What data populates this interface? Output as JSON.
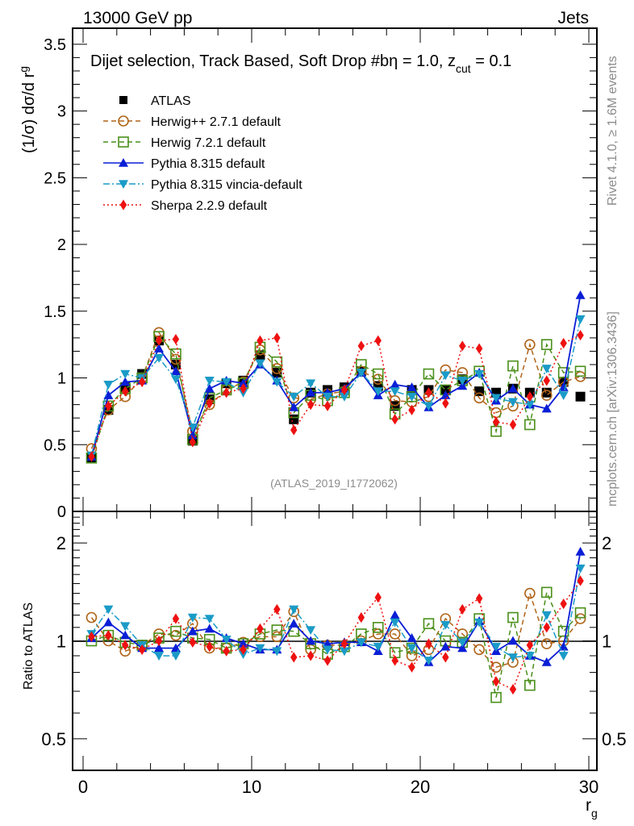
{
  "header": {
    "left": "13000 GeV pp",
    "right": "Jets"
  },
  "side_labels": {
    "rivet": "Rivet 4.1.0, ≥ 1.6M events",
    "mcplots": "mcplots.cern.ch [arXiv:1306.3436]"
  },
  "chart_data": [
    {
      "type": "line",
      "panel": "main",
      "title": "Dijet selection, Track Based, Soft Drop #bη = 1.0, z_cut = 0.1",
      "title_parts": {
        "main": "Dijet selection, Track Based, Soft Drop #bη = 1.0, z",
        "sub": "cut",
        "tail": " = 0.1"
      },
      "ylabel": "(1/σ) dσ/d r_g",
      "ylabel_parts": {
        "main": "(1/σ) dσ/d r",
        "sub": "g"
      },
      "xlabel": "",
      "annotation": "(ATLAS_2019_I1772062)",
      "xlim": [
        -0.6,
        30.5
      ],
      "ylim": [
        0,
        3.62
      ],
      "yticks": [
        0,
        0.5,
        1,
        1.5,
        2,
        2.5,
        3,
        3.5
      ],
      "ytick_labels": [
        "0",
        "0.5",
        "1",
        "1.5",
        "2",
        "2.5",
        "3",
        "3.5"
      ],
      "legend_position": "top-left",
      "x": [
        0.5,
        1.5,
        2.5,
        3.5,
        4.5,
        5.5,
        6.5,
        7.5,
        8.5,
        9.5,
        10.5,
        11.5,
        12.5,
        13.5,
        14.5,
        15.5,
        16.5,
        17.5,
        18.5,
        19.5,
        20.5,
        21.5,
        22.5,
        23.5,
        24.5,
        25.5,
        26.5,
        27.5,
        28.5,
        29.5
      ],
      "series": [
        {
          "name": "ATLAS",
          "color": "#000000",
          "marker": "square-filled",
          "line": "none",
          "values": [
            0.4,
            0.76,
            0.93,
            1.03,
            1.28,
            1.1,
            0.53,
            0.84,
            0.96,
            0.98,
            1.17,
            1.04,
            0.69,
            0.89,
            0.91,
            0.93,
            1.05,
            0.94,
            0.79,
            0.91,
            0.91,
            0.91,
            0.99,
            0.9,
            0.89,
            0.92,
            0.89,
            0.89,
            0.97,
            0.86
          ]
        },
        {
          "name": "Herwig++ 2.7.1 default",
          "color": "#b06418",
          "marker": "circle-open",
          "line": "dashed",
          "values": [
            0.47,
            0.76,
            0.86,
            1.0,
            1.34,
            1.14,
            0.6,
            0.8,
            0.91,
            0.97,
            1.21,
            1.07,
            0.85,
            0.84,
            0.88,
            0.9,
            1.05,
            0.99,
            0.83,
            0.82,
            0.86,
            1.06,
            1.04,
            0.85,
            0.74,
            0.79,
            1.25,
            0.87,
            0.97,
            1.01
          ]
        },
        {
          "name": "Herwig 7.2.1 default",
          "color": "#4a8f1a",
          "marker": "square-open",
          "line": "dashed",
          "values": [
            0.4,
            0.79,
            0.92,
            1.0,
            1.31,
            1.18,
            0.54,
            0.85,
            0.91,
            0.96,
            1.23,
            1.12,
            0.74,
            0.87,
            0.83,
            0.89,
            1.1,
            1.03,
            0.73,
            0.86,
            1.03,
            0.91,
            0.98,
            1.05,
            0.6,
            1.09,
            0.65,
            1.25,
            1.04,
            1.05
          ]
        },
        {
          "name": "Pythia 8.315 default",
          "color": "#0a1ed6",
          "marker": "triangle-up-filled",
          "line": "solid",
          "values": [
            0.41,
            0.87,
            0.97,
            0.98,
            1.22,
            1.05,
            0.57,
            0.92,
            0.98,
            0.96,
            1.1,
            0.98,
            0.78,
            0.89,
            0.89,
            0.92,
            1.04,
            0.87,
            0.95,
            0.93,
            0.78,
            0.87,
            0.94,
            1.04,
            0.83,
            0.92,
            0.8,
            0.77,
            0.93,
            1.62
          ]
        },
        {
          "name": "Pythia 8.315 vincia-default",
          "color": "#1a9bc7",
          "marker": "triangle-down-filled",
          "line": "dashdot",
          "values": [
            0.42,
            0.95,
            1.03,
            1.0,
            1.15,
            0.99,
            0.63,
            0.98,
            0.97,
            0.89,
            1.11,
            0.97,
            0.86,
            0.96,
            0.86,
            0.86,
            1.04,
            0.9,
            0.9,
            0.86,
            0.79,
            1.02,
            0.98,
            1.03,
            0.85,
            0.82,
            0.8,
            1.07,
            0.87,
            1.44
          ]
        },
        {
          "name": "Sherpa 2.2.9 default",
          "color": "#ee1111",
          "marker": "diamond-filled",
          "line": "dotted",
          "values": [
            0.41,
            0.79,
            0.9,
            0.97,
            1.28,
            1.29,
            0.52,
            0.81,
            0.89,
            0.92,
            1.28,
            1.3,
            0.61,
            0.8,
            0.79,
            0.91,
            1.24,
            1.28,
            0.69,
            0.76,
            0.89,
            0.81,
            1.24,
            1.22,
            0.67,
            0.65,
            0.86,
            0.98,
            1.26,
            1.32
          ]
        }
      ]
    },
    {
      "type": "line",
      "panel": "ratio",
      "ylabel": "Ratio to ATLAS",
      "xlabel": "r_g",
      "xlabel_parts": {
        "main": "r",
        "sub": "g"
      },
      "xlim": [
        -0.6,
        30.5
      ],
      "ylim": [
        0.4,
        2.5
      ],
      "yscale": "log",
      "yticks": [
        0.5,
        1,
        2
      ],
      "ytick_labels": [
        "0.5",
        "1",
        "2"
      ],
      "xticks": [
        0,
        10,
        20,
        30
      ],
      "xtick_labels": [
        "0",
        "10",
        "20",
        "30"
      ],
      "x": [
        0.5,
        1.5,
        2.5,
        3.5,
        4.5,
        5.5,
        6.5,
        7.5,
        8.5,
        9.5,
        10.5,
        11.5,
        12.5,
        13.5,
        14.5,
        15.5,
        16.5,
        17.5,
        18.5,
        19.5,
        20.5,
        21.5,
        22.5,
        23.5,
        24.5,
        25.5,
        26.5,
        27.5,
        28.5,
        29.5
      ],
      "series": [
        {
          "name": "Herwig++ 2.7.1 default",
          "color": "#b06418",
          "marker": "circle-open",
          "line": "dashed",
          "values": [
            1.18,
            1.0,
            0.93,
            0.97,
            1.05,
            1.04,
            1.13,
            0.95,
            0.95,
            0.99,
            1.03,
            1.03,
            1.23,
            0.94,
            0.97,
            0.97,
            1.0,
            1.05,
            1.05,
            0.9,
            0.94,
            1.17,
            1.05,
            0.94,
            0.83,
            0.86,
            1.4,
            0.98,
            1.0,
            1.17
          ]
        },
        {
          "name": "Herwig 7.2.1 default",
          "color": "#4a8f1a",
          "marker": "square-open",
          "line": "dashed",
          "values": [
            1.0,
            1.04,
            0.99,
            0.97,
            1.02,
            1.07,
            1.02,
            1.01,
            0.95,
            0.98,
            1.05,
            1.08,
            1.07,
            0.98,
            0.91,
            0.96,
            1.05,
            1.1,
            0.92,
            0.95,
            1.13,
            1.0,
            0.99,
            1.17,
            0.67,
            1.18,
            0.73,
            1.41,
            1.07,
            1.22
          ]
        },
        {
          "name": "Pythia 8.315 default",
          "color": "#0a1ed6",
          "marker": "triangle-up-filled",
          "line": "solid",
          "values": [
            1.02,
            1.14,
            1.04,
            0.95,
            0.95,
            0.95,
            1.07,
            1.09,
            1.02,
            0.98,
            0.94,
            0.94,
            1.13,
            1.0,
            0.98,
            0.99,
            0.99,
            0.93,
            1.2,
            1.02,
            0.86,
            0.96,
            0.95,
            1.15,
            0.93,
            1.0,
            0.9,
            0.86,
            0.96,
            1.88
          ]
        },
        {
          "name": "Pythia 8.315 vincia-default",
          "color": "#1a9bc7",
          "marker": "triangle-down-filled",
          "line": "dashdot",
          "values": [
            1.05,
            1.25,
            1.11,
            0.97,
            0.9,
            0.9,
            1.18,
            1.17,
            1.01,
            0.91,
            0.95,
            0.93,
            1.25,
            1.08,
            0.94,
            0.93,
            0.99,
            0.96,
            1.14,
            0.95,
            0.87,
            1.12,
            0.99,
            1.14,
            0.96,
            0.89,
            0.9,
            1.2,
            0.9,
            1.67
          ]
        },
        {
          "name": "Sherpa 2.2.9 default",
          "color": "#ee1111",
          "marker": "diamond-filled",
          "line": "dotted",
          "values": [
            1.03,
            1.04,
            0.97,
            0.94,
            1.0,
            1.17,
            0.99,
            0.96,
            0.93,
            0.94,
            1.09,
            1.25,
            0.89,
            0.9,
            0.87,
            0.98,
            1.18,
            1.36,
            0.87,
            0.83,
            0.98,
            0.89,
            1.25,
            1.35,
            0.75,
            0.71,
            0.97,
            1.1,
            1.3,
            1.53
          ]
        }
      ]
    }
  ]
}
